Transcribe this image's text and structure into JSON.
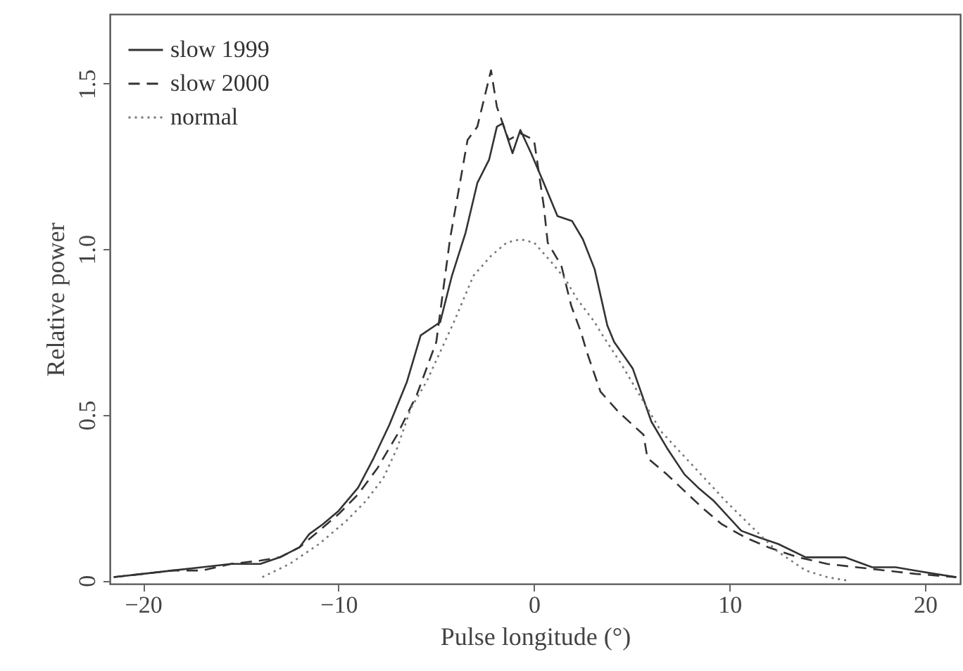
{
  "chart_data": {
    "type": "line",
    "xlabel": "Pulse longitude (°)",
    "ylabel": "Relative power",
    "xlim": [
      -21.7,
      21.8
    ],
    "ylim": [
      -0.01,
      1.71
    ],
    "xticks": [
      -20,
      -10,
      0,
      10,
      20
    ],
    "yticks": [
      0,
      0.5,
      {
        "value": 1,
        "label": "1.0"
      },
      1.5
    ],
    "legend": "top left",
    "grid": false,
    "series": [
      {
        "name": "slow 1999",
        "color": "#333333",
        "line_style": "solid",
        "x": [
          -21.5,
          -20,
          -18.5,
          -17,
          -15.5,
          -14,
          -13,
          -12,
          -11.5,
          -10.8,
          -10,
          -9,
          -8.2,
          -7.4,
          -6.5,
          -5.8,
          -4.8,
          -4.2,
          -3.5,
          -2.9,
          -2.3,
          -1.9,
          -1.6,
          -1.1,
          -0.7,
          -0.15,
          0.5,
          1.2,
          1.95,
          2.5,
          3.1,
          3.75,
          4.1,
          5.05,
          6,
          6.8,
          7.7,
          8.4,
          9.2,
          10.6,
          11.5,
          12.5,
          13.9,
          15.9,
          17.3,
          18.5,
          19.5,
          20.5,
          21.6
        ],
        "values": [
          0.01,
          0.02,
          0.03,
          0.04,
          0.05,
          0.05,
          0.07,
          0.1,
          0.14,
          0.17,
          0.21,
          0.28,
          0.37,
          0.47,
          0.6,
          0.74,
          0.78,
          0.92,
          1.05,
          1.2,
          1.27,
          1.37,
          1.38,
          1.29,
          1.36,
          1.29,
          1.2,
          1.1,
          1.085,
          1.03,
          0.94,
          0.77,
          0.72,
          0.64,
          0.48,
          0.4,
          0.32,
          0.28,
          0.24,
          0.15,
          0.13,
          0.11,
          0.07,
          0.07,
          0.04,
          0.04,
          0.03,
          0.02,
          0.01
        ]
      },
      {
        "name": "slow 2000",
        "color": "#333333",
        "line_style": "dashed",
        "x": [
          -21.5,
          -20,
          -18.5,
          -17,
          -15.5,
          -14,
          -13,
          -12,
          -11,
          -10,
          -9,
          -8,
          -7,
          -6,
          -5,
          -4.3,
          -3.4,
          -2.9,
          -2.2,
          -1.9,
          -1.3,
          -0.7,
          0,
          0.5,
          0.7,
          1.4,
          1.9,
          2.4,
          2.7,
          3.4,
          4.3,
          5.6,
          5.8,
          6.8,
          7.7,
          8.6,
          9.6,
          10.8,
          12,
          13.5,
          15,
          16.5,
          18,
          19.5,
          21.6
        ],
        "values": [
          0.01,
          0.02,
          0.03,
          0.03,
          0.05,
          0.06,
          0.07,
          0.1,
          0.15,
          0.2,
          0.26,
          0.34,
          0.44,
          0.56,
          0.72,
          1.03,
          1.33,
          1.37,
          1.54,
          1.43,
          1.33,
          1.35,
          1.33,
          1.13,
          1.02,
          0.95,
          0.83,
          0.75,
          0.69,
          0.57,
          0.51,
          0.44,
          0.37,
          0.32,
          0.27,
          0.22,
          0.17,
          0.13,
          0.1,
          0.07,
          0.05,
          0.04,
          0.03,
          0.02,
          0.01
        ]
      },
      {
        "name": "normal",
        "color": "#777777",
        "line_style": "dotted",
        "x": [
          -13.9,
          -12.5,
          -11,
          -9.6,
          -8.6,
          -7.7,
          -7,
          -6.3,
          -5.5,
          -4.8,
          -4.1,
          -3.1,
          -2.2,
          -1.4,
          -0.7,
          0,
          0.9,
          1.6,
          2.2,
          3.1,
          3.4,
          4.5,
          5.5,
          6.5,
          7.6,
          8.7,
          9.8,
          11,
          12.4,
          13.9,
          15,
          16
        ],
        "values": [
          0.01,
          0.05,
          0.11,
          0.18,
          0.24,
          0.31,
          0.4,
          0.52,
          0.6,
          0.69,
          0.78,
          0.92,
          0.98,
          1.02,
          1.03,
          1.02,
          0.96,
          0.91,
          0.85,
          0.78,
          0.75,
          0.65,
          0.55,
          0.45,
          0.38,
          0.31,
          0.24,
          0.17,
          0.09,
          0.03,
          0.01,
          0.0
        ]
      }
    ]
  }
}
